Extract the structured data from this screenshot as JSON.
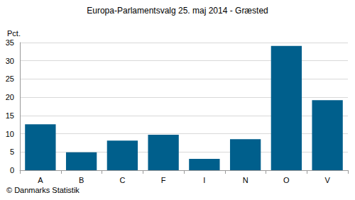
{
  "chart_data": {
    "type": "bar",
    "title": "Europa-Parlamentsvalg 25. maj 2014 - Græsted",
    "ylabel": "Pct.",
    "source": "© Danmarks Statistik",
    "categories": [
      "A",
      "B",
      "C",
      "F",
      "I",
      "N",
      "O",
      "V"
    ],
    "values": [
      12.6,
      4.9,
      8.1,
      9.7,
      3.1,
      8.5,
      34.1,
      19.2
    ],
    "color": "#005f8c",
    "ylim": [
      0,
      35
    ],
    "yticks": [
      0,
      5,
      10,
      15,
      20,
      25,
      30,
      35
    ],
    "grid": true
  }
}
